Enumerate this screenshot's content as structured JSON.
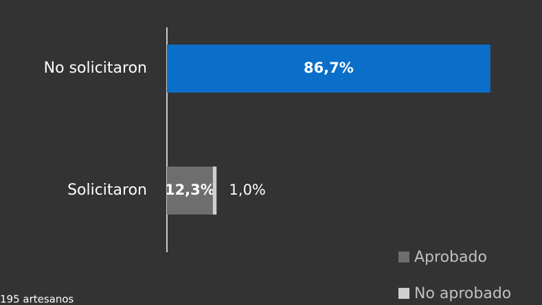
{
  "chart_data": {
    "type": "stacked_barh",
    "categories": [
      "No solicitaron",
      "Solicitaron"
    ],
    "series": [
      {
        "color": "#0b6fc9",
        "values": [
          86.7,
          null
        ],
        "value_labels": [
          "86,7%",
          null
        ]
      },
      {
        "name": "Aprobado",
        "color": "#6e6e6e",
        "values": [
          null,
          12.3
        ],
        "value_labels": [
          null,
          "12,3%"
        ]
      },
      {
        "name": "No aprobado",
        "color": "#cfcfcf",
        "values": [
          null,
          1.0
        ],
        "value_labels": [
          null,
          "1,0%"
        ]
      }
    ],
    "xlim": [
      0,
      100
    ],
    "note": "195 artesanos"
  }
}
